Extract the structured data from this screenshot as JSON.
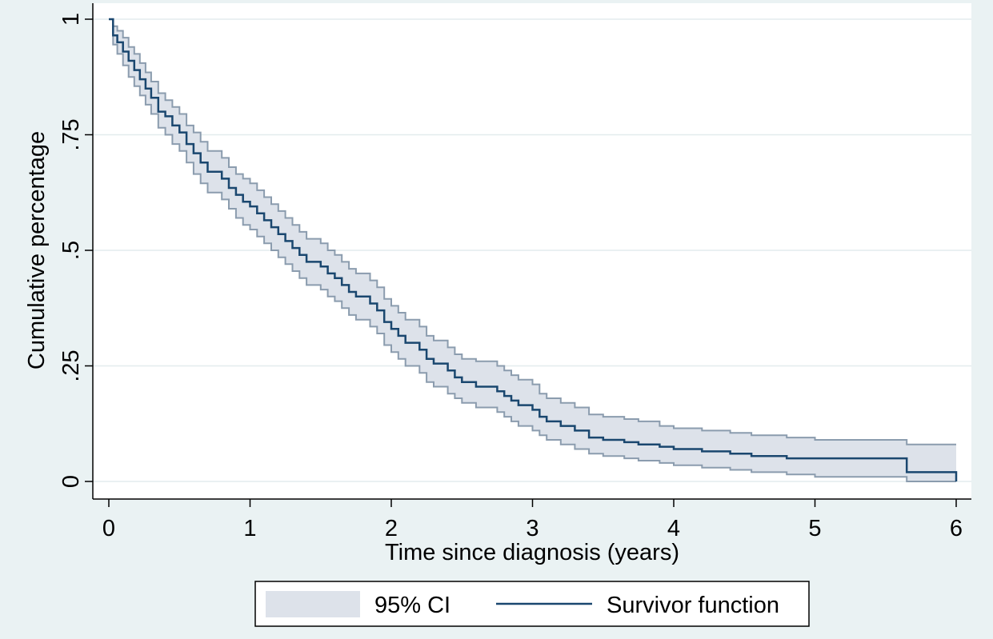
{
  "chart_data": {
    "type": "line",
    "title": "",
    "xlabel": "Time since diagnosis (years)",
    "ylabel": "Cumulative percentage",
    "xlim": [
      0,
      6
    ],
    "ylim": [
      0,
      1
    ],
    "x_ticks": [
      {
        "value": 0,
        "label": "0"
      },
      {
        "value": 1,
        "label": "1"
      },
      {
        "value": 2,
        "label": "2"
      },
      {
        "value": 3,
        "label": "3"
      },
      {
        "value": 4,
        "label": "4"
      },
      {
        "value": 5,
        "label": "5"
      },
      {
        "value": 6,
        "label": "6"
      }
    ],
    "y_ticks": [
      {
        "value": 0,
        "label": "0"
      },
      {
        "value": 0.25,
        "label": ".25"
      },
      {
        "value": 0.5,
        "label": ".5"
      },
      {
        "value": 0.75,
        "label": ".75"
      },
      {
        "value": 1,
        "label": "1"
      }
    ],
    "grid": true,
    "legend_position": "bottom",
    "colors": {
      "plot_bg": "#ffffff",
      "outer_bg": "#eaf2f3",
      "gridline": "#e3ecee",
      "ci_fill": "#dde2ea",
      "ci_edge": "#8b9cae",
      "line": "#1a476f"
    },
    "series": [
      {
        "name": "Survivor function",
        "kind": "step",
        "x": [
          0,
          0.03,
          0.06,
          0.1,
          0.14,
          0.18,
          0.22,
          0.26,
          0.3,
          0.35,
          0.4,
          0.45,
          0.5,
          0.55,
          0.6,
          0.65,
          0.7,
          0.8,
          0.85,
          0.9,
          0.95,
          1.0,
          1.05,
          1.1,
          1.15,
          1.2,
          1.25,
          1.3,
          1.35,
          1.4,
          1.5,
          1.55,
          1.6,
          1.65,
          1.7,
          1.75,
          1.85,
          1.9,
          1.95,
          2.0,
          2.05,
          2.1,
          2.2,
          2.25,
          2.3,
          2.4,
          2.45,
          2.5,
          2.6,
          2.75,
          2.8,
          2.85,
          2.9,
          3.0,
          3.05,
          3.1,
          3.2,
          3.3,
          3.4,
          3.5,
          3.65,
          3.75,
          3.9,
          4.0,
          4.2,
          4.4,
          4.55,
          4.8,
          5.0,
          5.65,
          6.0
        ],
        "y": [
          1.0,
          0.965,
          0.95,
          0.93,
          0.91,
          0.89,
          0.87,
          0.85,
          0.83,
          0.8,
          0.79,
          0.77,
          0.755,
          0.73,
          0.71,
          0.69,
          0.67,
          0.655,
          0.635,
          0.62,
          0.605,
          0.595,
          0.58,
          0.565,
          0.55,
          0.535,
          0.52,
          0.505,
          0.49,
          0.475,
          0.465,
          0.45,
          0.44,
          0.425,
          0.41,
          0.4,
          0.385,
          0.37,
          0.345,
          0.33,
          0.315,
          0.3,
          0.285,
          0.265,
          0.255,
          0.24,
          0.225,
          0.215,
          0.205,
          0.195,
          0.185,
          0.175,
          0.165,
          0.155,
          0.14,
          0.13,
          0.12,
          0.11,
          0.095,
          0.09,
          0.085,
          0.08,
          0.075,
          0.07,
          0.065,
          0.06,
          0.055,
          0.05,
          0.05,
          0.02,
          0.0
        ]
      }
    ],
    "ci": {
      "name": "95% CI",
      "x": [
        0,
        0.03,
        0.06,
        0.1,
        0.14,
        0.18,
        0.22,
        0.26,
        0.3,
        0.35,
        0.4,
        0.45,
        0.5,
        0.55,
        0.6,
        0.65,
        0.7,
        0.8,
        0.85,
        0.9,
        0.95,
        1.0,
        1.05,
        1.1,
        1.15,
        1.2,
        1.25,
        1.3,
        1.35,
        1.4,
        1.5,
        1.55,
        1.6,
        1.65,
        1.7,
        1.75,
        1.85,
        1.9,
        1.95,
        2.0,
        2.05,
        2.1,
        2.2,
        2.25,
        2.3,
        2.4,
        2.45,
        2.5,
        2.6,
        2.75,
        2.8,
        2.85,
        2.9,
        3.0,
        3.05,
        3.1,
        3.2,
        3.3,
        3.4,
        3.5,
        3.65,
        3.75,
        3.9,
        4.0,
        4.2,
        4.4,
        4.55,
        4.8,
        5.0,
        5.65,
        6.0
      ],
      "upper": [
        1.0,
        0.985,
        0.975,
        0.96,
        0.94,
        0.925,
        0.905,
        0.885,
        0.865,
        0.84,
        0.825,
        0.81,
        0.795,
        0.77,
        0.755,
        0.735,
        0.715,
        0.7,
        0.68,
        0.665,
        0.655,
        0.645,
        0.63,
        0.615,
        0.6,
        0.585,
        0.57,
        0.555,
        0.54,
        0.525,
        0.515,
        0.5,
        0.49,
        0.475,
        0.46,
        0.45,
        0.435,
        0.42,
        0.395,
        0.38,
        0.365,
        0.35,
        0.335,
        0.315,
        0.305,
        0.29,
        0.275,
        0.265,
        0.26,
        0.25,
        0.24,
        0.23,
        0.22,
        0.21,
        0.19,
        0.18,
        0.17,
        0.16,
        0.145,
        0.14,
        0.135,
        0.13,
        0.12,
        0.115,
        0.11,
        0.105,
        0.1,
        0.095,
        0.09,
        0.08,
        0.08
      ],
      "lower": [
        1.0,
        0.945,
        0.925,
        0.9,
        0.875,
        0.855,
        0.835,
        0.815,
        0.795,
        0.765,
        0.75,
        0.73,
        0.715,
        0.69,
        0.665,
        0.645,
        0.625,
        0.61,
        0.59,
        0.57,
        0.555,
        0.545,
        0.53,
        0.515,
        0.5,
        0.485,
        0.47,
        0.455,
        0.44,
        0.425,
        0.415,
        0.4,
        0.39,
        0.375,
        0.36,
        0.35,
        0.335,
        0.32,
        0.295,
        0.28,
        0.265,
        0.25,
        0.235,
        0.215,
        0.205,
        0.19,
        0.18,
        0.17,
        0.16,
        0.15,
        0.14,
        0.13,
        0.12,
        0.11,
        0.1,
        0.09,
        0.08,
        0.07,
        0.06,
        0.055,
        0.05,
        0.045,
        0.04,
        0.035,
        0.03,
        0.025,
        0.02,
        0.015,
        0.01,
        0.0,
        0.0
      ]
    },
    "legend": [
      {
        "label": "95% CI",
        "kind": "area"
      },
      {
        "label": "Survivor function",
        "kind": "line"
      }
    ]
  }
}
